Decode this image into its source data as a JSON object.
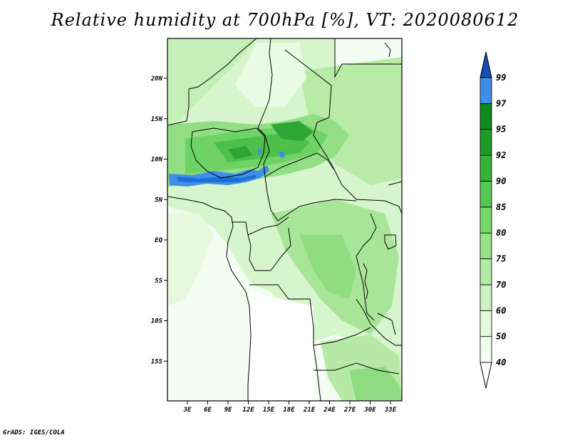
{
  "title": "Relative humidity at 700hPa [%], VT: 2020080612",
  "credit": "GrADS: IGES/COLA",
  "map": {
    "lat_labels": [
      {
        "label": "20N",
        "lat": 20
      },
      {
        "label": "15N",
        "lat": 15
      },
      {
        "label": "10N",
        "lat": 10
      },
      {
        "label": "5N",
        "lat": 5
      },
      {
        "label": "EQ",
        "lat": 0
      },
      {
        "label": "5S",
        "lat": -5
      },
      {
        "label": "10S",
        "lat": -10
      },
      {
        "label": "15S",
        "lat": -15
      }
    ],
    "lon_labels": [
      {
        "label": "3E",
        "lon": 3
      },
      {
        "label": "6E",
        "lon": 6
      },
      {
        "label": "9E",
        "lon": 9
      },
      {
        "label": "12E",
        "lon": 12
      },
      {
        "label": "15E",
        "lon": 15
      },
      {
        "label": "18E",
        "lon": 18
      },
      {
        "label": "21E",
        "lon": 21
      },
      {
        "label": "24E",
        "lon": 24
      },
      {
        "label": "27E",
        "lon": 27
      },
      {
        "label": "30E",
        "lon": 30
      },
      {
        "label": "33E",
        "lon": 33
      }
    ]
  },
  "colorbar": {
    "levels": [
      {
        "label": "40",
        "color": "#f2fdef"
      },
      {
        "label": "50",
        "color": "#e3f9dc"
      },
      {
        "label": "60",
        "color": "#cdf2c1"
      },
      {
        "label": "70",
        "color": "#b2eba4"
      },
      {
        "label": "75",
        "color": "#94e387"
      },
      {
        "label": "80",
        "color": "#74d86a"
      },
      {
        "label": "85",
        "color": "#55c84f"
      },
      {
        "label": "90",
        "color": "#34b238"
      },
      {
        "label": "92",
        "color": "#1d9b27"
      },
      {
        "label": "95",
        "color": "#0c8a1b"
      },
      {
        "label": "97",
        "color": "#3f8fe8"
      },
      {
        "label": "99",
        "color": "#1f6fd8"
      }
    ],
    "top_color": "#1550b8"
  }
}
